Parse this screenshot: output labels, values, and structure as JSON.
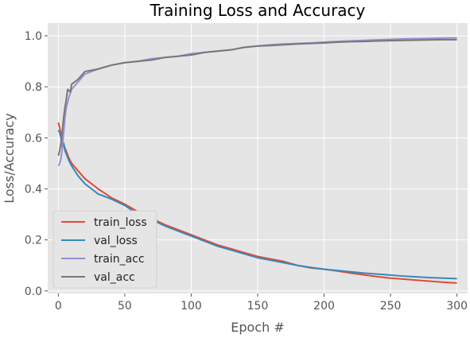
{
  "chart_data": {
    "type": "line",
    "title": "Training Loss and Accuracy",
    "xlabel": "Epoch #",
    "ylabel": "Loss/Accuracy",
    "xlim": [
      -8,
      308
    ],
    "ylim": [
      -0.01,
      1.05
    ],
    "xticks": [
      0,
      50,
      100,
      150,
      200,
      250,
      300
    ],
    "yticks": [
      0.0,
      0.2,
      0.4,
      0.6,
      0.8,
      1.0
    ],
    "xtick_labels": [
      "0",
      "50",
      "100",
      "150",
      "200",
      "250",
      "300"
    ],
    "ytick_labels": [
      "0.0",
      "0.2",
      "0.4",
      "0.6",
      "0.8",
      "1.0"
    ],
    "grid": true,
    "style": "ggplot",
    "legend_position": "lower-left",
    "series": [
      {
        "name": "train_loss",
        "color": "#E24A33",
        "points": [
          [
            0,
            0.66
          ],
          [
            1,
            0.64
          ],
          [
            2,
            0.61
          ],
          [
            3,
            0.59
          ],
          [
            5,
            0.56
          ],
          [
            8,
            0.52
          ],
          [
            10,
            0.5
          ],
          [
            15,
            0.47
          ],
          [
            20,
            0.44
          ],
          [
            25,
            0.42
          ],
          [
            30,
            0.4
          ],
          [
            40,
            0.365
          ],
          [
            50,
            0.34
          ],
          [
            60,
            0.31
          ],
          [
            70,
            0.285
          ],
          [
            80,
            0.26
          ],
          [
            90,
            0.24
          ],
          [
            100,
            0.22
          ],
          [
            110,
            0.2
          ],
          [
            120,
            0.18
          ],
          [
            130,
            0.165
          ],
          [
            140,
            0.15
          ],
          [
            150,
            0.135
          ],
          [
            160,
            0.125
          ],
          [
            170,
            0.115
          ],
          [
            180,
            0.1
          ],
          [
            190,
            0.09
          ],
          [
            200,
            0.085
          ],
          [
            210,
            0.078
          ],
          [
            220,
            0.07
          ],
          [
            230,
            0.063
          ],
          [
            240,
            0.056
          ],
          [
            250,
            0.05
          ],
          [
            260,
            0.046
          ],
          [
            270,
            0.042
          ],
          [
            280,
            0.038
          ],
          [
            290,
            0.034
          ],
          [
            300,
            0.031
          ]
        ]
      },
      {
        "name": "val_loss",
        "color": "#348ABD",
        "points": [
          [
            0,
            0.63
          ],
          [
            1,
            0.62
          ],
          [
            2,
            0.6
          ],
          [
            3,
            0.56
          ],
          [
            4,
            0.58
          ],
          [
            5,
            0.55
          ],
          [
            8,
            0.51
          ],
          [
            10,
            0.49
          ],
          [
            15,
            0.45
          ],
          [
            20,
            0.42
          ],
          [
            25,
            0.4
          ],
          [
            30,
            0.38
          ],
          [
            40,
            0.36
          ],
          [
            50,
            0.335
          ],
          [
            60,
            0.3
          ],
          [
            70,
            0.28
          ],
          [
            80,
            0.255
          ],
          [
            90,
            0.235
          ],
          [
            100,
            0.215
          ],
          [
            110,
            0.195
          ],
          [
            120,
            0.175
          ],
          [
            130,
            0.16
          ],
          [
            140,
            0.145
          ],
          [
            150,
            0.13
          ],
          [
            160,
            0.12
          ],
          [
            170,
            0.11
          ],
          [
            180,
            0.1
          ],
          [
            190,
            0.092
          ],
          [
            200,
            0.085
          ],
          [
            210,
            0.08
          ],
          [
            220,
            0.075
          ],
          [
            230,
            0.07
          ],
          [
            240,
            0.066
          ],
          [
            250,
            0.062
          ],
          [
            260,
            0.058
          ],
          [
            270,
            0.055
          ],
          [
            280,
            0.052
          ],
          [
            290,
            0.05
          ],
          [
            300,
            0.048
          ]
        ]
      },
      {
        "name": "train_acc",
        "color": "#988ED5",
        "points": [
          [
            0,
            0.49
          ],
          [
            1,
            0.5
          ],
          [
            2,
            0.52
          ],
          [
            3,
            0.56
          ],
          [
            4,
            0.62
          ],
          [
            5,
            0.68
          ],
          [
            6,
            0.72
          ],
          [
            8,
            0.76
          ],
          [
            10,
            0.79
          ],
          [
            15,
            0.82
          ],
          [
            20,
            0.85
          ],
          [
            25,
            0.86
          ],
          [
            30,
            0.87
          ],
          [
            40,
            0.885
          ],
          [
            50,
            0.895
          ],
          [
            60,
            0.9
          ],
          [
            70,
            0.91
          ],
          [
            80,
            0.915
          ],
          [
            90,
            0.92
          ],
          [
            100,
            0.93
          ],
          [
            110,
            0.935
          ],
          [
            120,
            0.94
          ],
          [
            130,
            0.945
          ],
          [
            140,
            0.955
          ],
          [
            150,
            0.96
          ],
          [
            160,
            0.965
          ],
          [
            170,
            0.968
          ],
          [
            180,
            0.97
          ],
          [
            190,
            0.972
          ],
          [
            200,
            0.975
          ],
          [
            210,
            0.978
          ],
          [
            220,
            0.98
          ],
          [
            230,
            0.982
          ],
          [
            240,
            0.984
          ],
          [
            250,
            0.986
          ],
          [
            260,
            0.988
          ],
          [
            270,
            0.989
          ],
          [
            280,
            0.99
          ],
          [
            290,
            0.991
          ],
          [
            300,
            0.992
          ]
        ]
      },
      {
        "name": "val_acc",
        "color": "#777777",
        "points": [
          [
            0,
            0.53
          ],
          [
            1,
            0.55
          ],
          [
            2,
            0.58
          ],
          [
            3,
            0.63
          ],
          [
            4,
            0.68
          ],
          [
            5,
            0.72
          ],
          [
            6,
            0.75
          ],
          [
            7,
            0.79
          ],
          [
            9,
            0.78
          ],
          [
            10,
            0.81
          ],
          [
            15,
            0.83
          ],
          [
            20,
            0.86
          ],
          [
            25,
            0.865
          ],
          [
            30,
            0.87
          ],
          [
            40,
            0.885
          ],
          [
            50,
            0.895
          ],
          [
            60,
            0.9
          ],
          [
            70,
            0.905
          ],
          [
            80,
            0.915
          ],
          [
            90,
            0.92
          ],
          [
            100,
            0.925
          ],
          [
            110,
            0.935
          ],
          [
            120,
            0.94
          ],
          [
            130,
            0.945
          ],
          [
            140,
            0.955
          ],
          [
            150,
            0.96
          ],
          [
            160,
            0.962
          ],
          [
            170,
            0.965
          ],
          [
            180,
            0.968
          ],
          [
            190,
            0.97
          ],
          [
            200,
            0.972
          ],
          [
            210,
            0.975
          ],
          [
            220,
            0.977
          ],
          [
            230,
            0.978
          ],
          [
            240,
            0.98
          ],
          [
            250,
            0.981
          ],
          [
            260,
            0.982
          ],
          [
            270,
            0.983
          ],
          [
            280,
            0.984
          ],
          [
            290,
            0.985
          ],
          [
            300,
            0.985
          ]
        ]
      }
    ]
  },
  "theme": {
    "plot_background": "#E5E5E5",
    "grid_color": "#FFFFFF",
    "tick_color": "#555555"
  }
}
